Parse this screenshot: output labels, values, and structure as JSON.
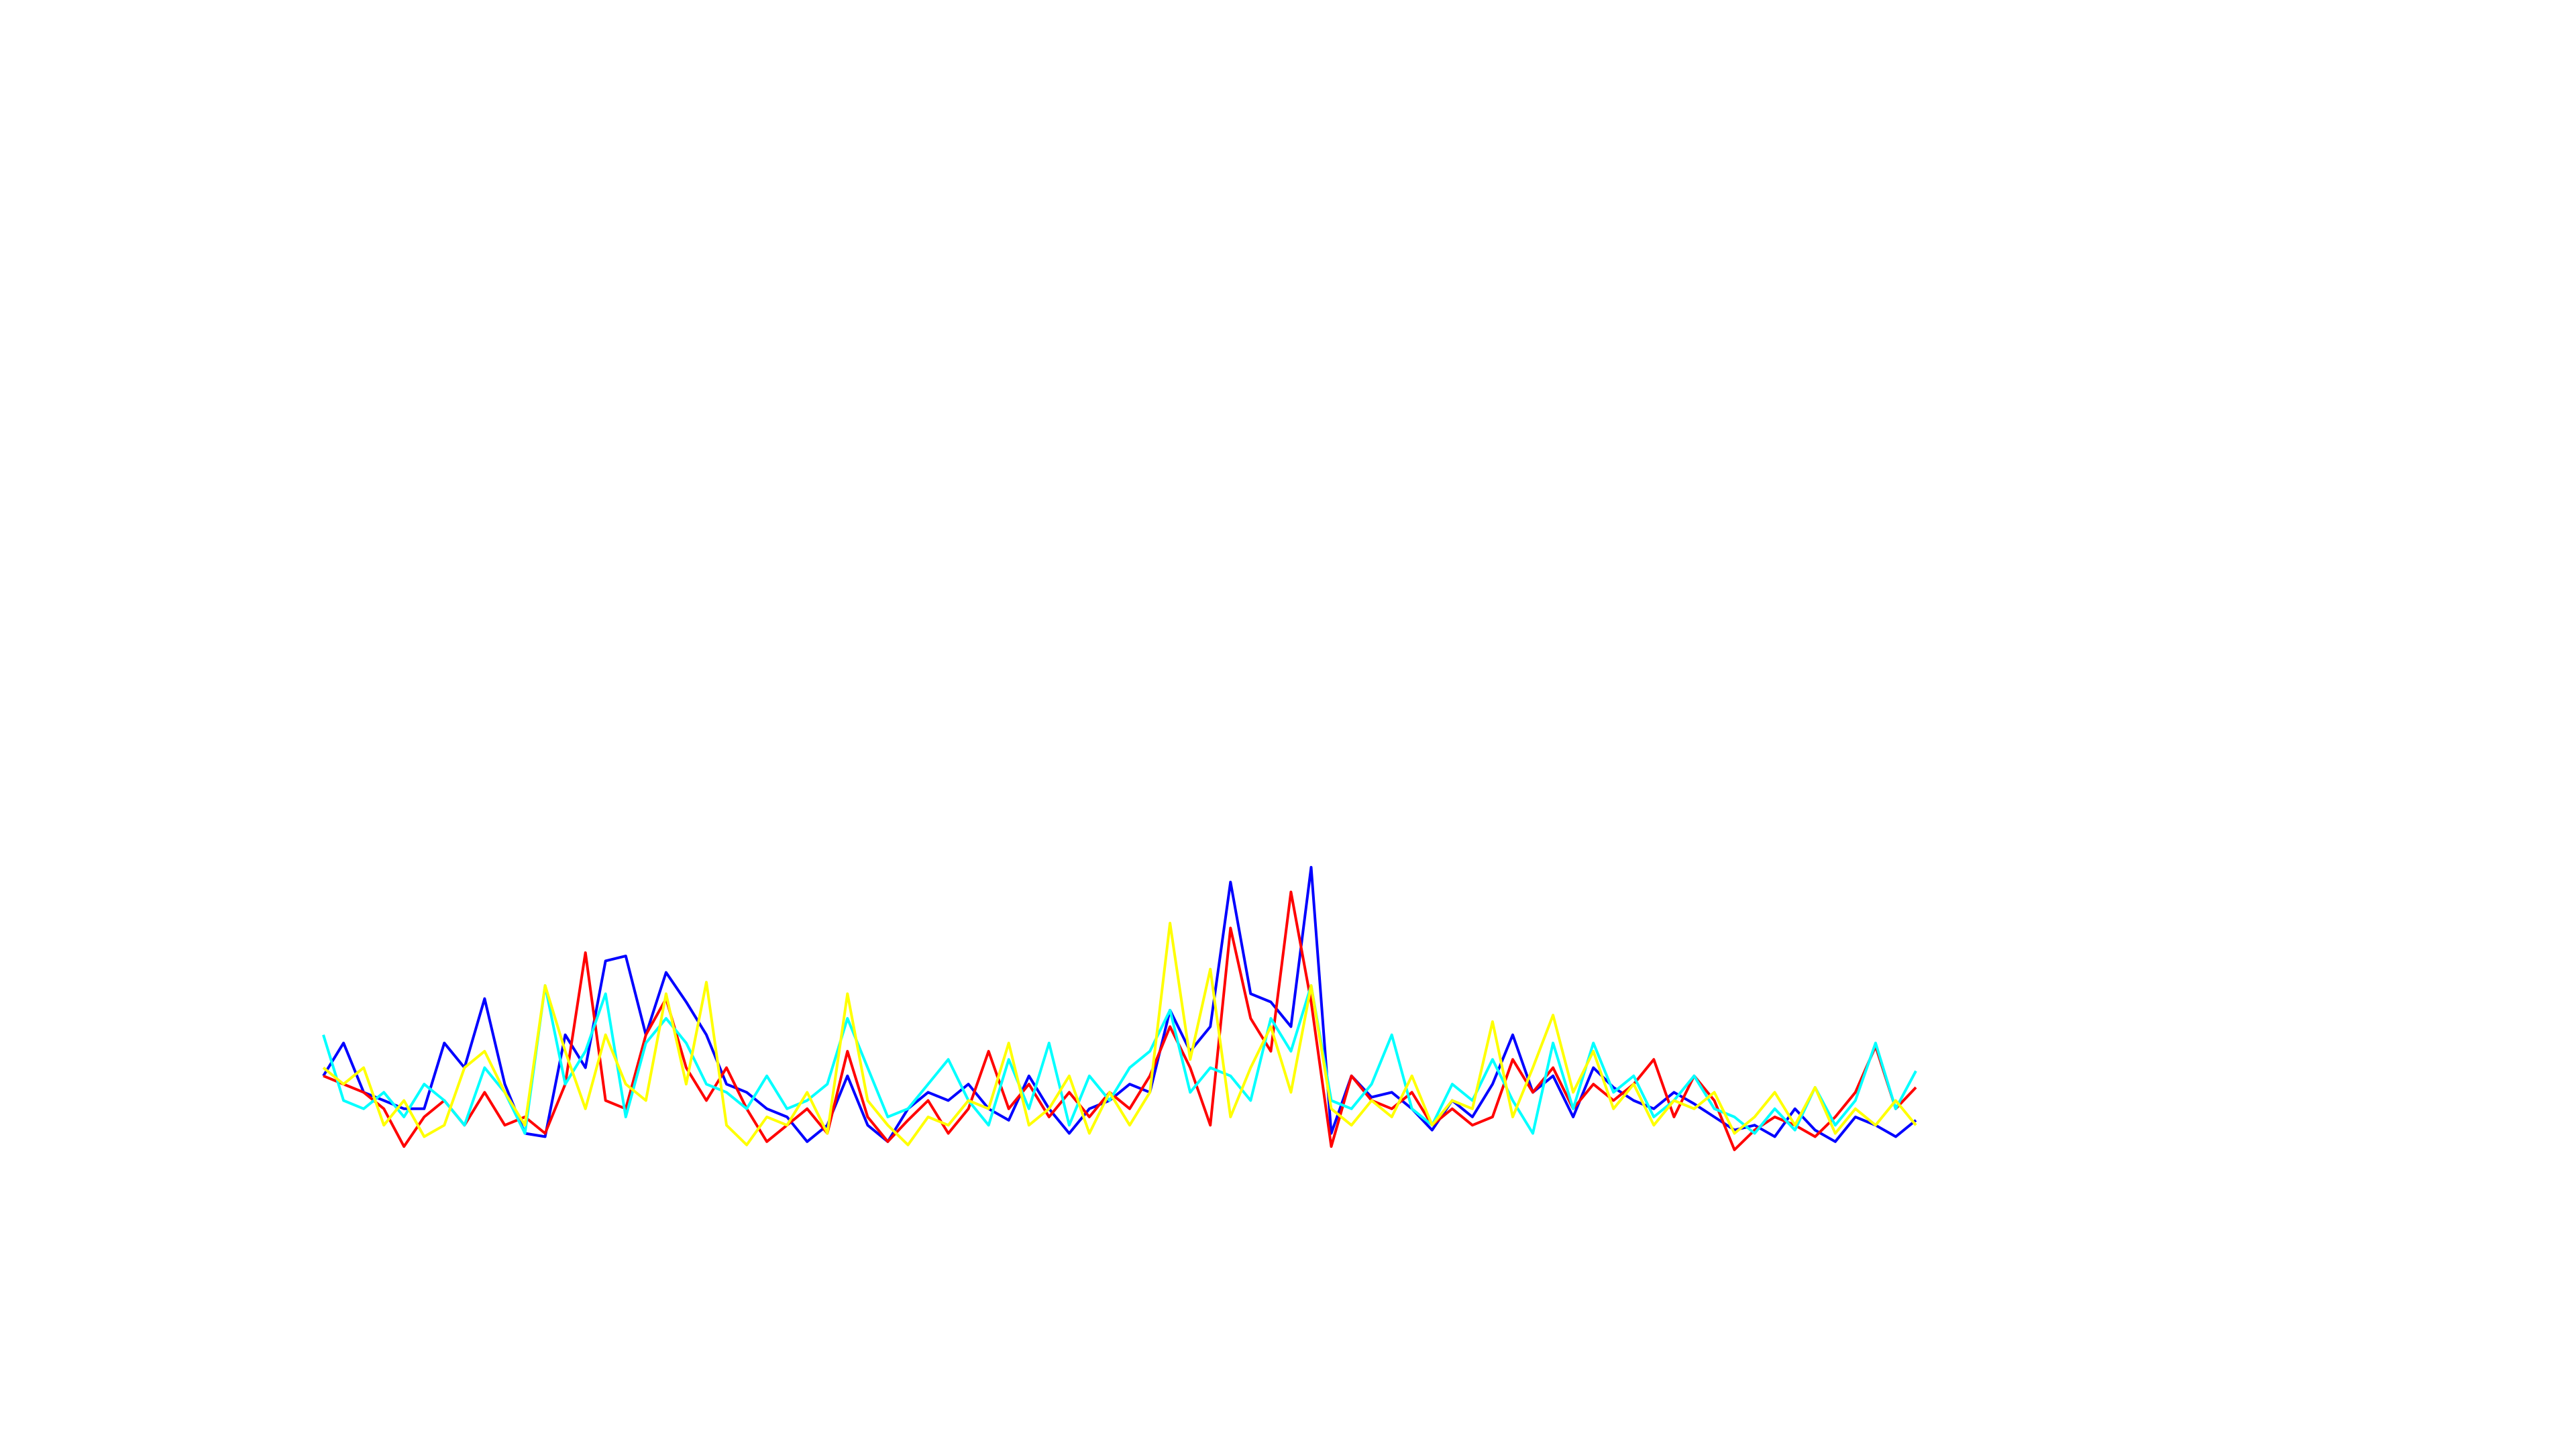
{
  "chart_data": {
    "type": "line",
    "ylim": [
      0,
      70
    ],
    "series": [
      {
        "color": "#0000ff",
        "values": [
          4.5,
          6.5,
          3.5,
          3,
          2.5,
          2.5,
          6.5,
          5,
          9.2,
          4,
          1,
          0.8,
          7,
          5,
          11.5,
          11.8,
          7,
          10.8,
          9,
          7,
          4,
          3.5,
          2.5,
          2,
          0.5,
          1.5,
          4.5,
          1.5,
          0.5,
          2.5,
          3.5,
          3,
          4,
          2.5,
          1.8,
          4.5,
          2.5,
          1,
          2.5,
          3,
          4,
          3.5,
          8.5,
          6,
          7.5,
          16.3,
          9.5,
          9,
          7.5,
          17.2,
          1,
          4.5,
          3.2,
          3.5,
          2.5,
          1.2,
          3,
          2,
          4,
          7,
          3.5,
          4.5,
          2,
          5,
          3.8,
          3,
          2.5,
          3.5,
          2.8,
          2,
          1.2,
          1.5,
          0.8,
          2.5,
          1.2,
          0.5,
          2,
          1.5,
          0.8,
          1.8
        ]
      },
      {
        "color": "#ff0000",
        "values": [
          4.5,
          4,
          3.5,
          2.5,
          0.2,
          2,
          3,
          1.5,
          3.5,
          1.5,
          2,
          1,
          4,
          12,
          3,
          2.5,
          7,
          9.2,
          5,
          3,
          5,
          2.5,
          0.5,
          1.5,
          2.5,
          1,
          6,
          2,
          0.5,
          1.8,
          3,
          1,
          2.5,
          6,
          2.5,
          4,
          2,
          3.5,
          2,
          3.5,
          2.5,
          4.5,
          7.5,
          5,
          1.5,
          13.5,
          8,
          6,
          15.7,
          9,
          0.2,
          4.5,
          3,
          2.5,
          3.5,
          1.5,
          2.5,
          1.5,
          2,
          5.5,
          3.5,
          5,
          2.5,
          4,
          3,
          4,
          5.5,
          2,
          4.5,
          3,
          0,
          1.2,
          2,
          1.5,
          0.8,
          2,
          3.5,
          6.3,
          2.5,
          3.8
        ]
      },
      {
        "color": "#00ffff",
        "values": [
          7,
          3,
          2.5,
          3.5,
          2,
          4,
          3,
          1.5,
          5,
          3.5,
          1,
          10,
          4,
          6,
          9.5,
          2,
          6.5,
          8,
          6.5,
          4,
          3.5,
          2.5,
          4.5,
          2.5,
          3,
          4,
          8,
          5,
          2,
          2.5,
          4,
          5.5,
          3,
          1.5,
          5.5,
          2.5,
          6.5,
          1.5,
          4.5,
          3,
          5,
          6,
          8.5,
          3.5,
          5,
          4.5,
          3,
          8,
          6,
          10,
          3,
          2.5,
          4,
          7,
          2.5,
          1.5,
          4,
          3,
          5.5,
          3,
          1,
          6.5,
          2.5,
          6.5,
          3.5,
          4.5,
          2,
          3,
          4.5,
          2.5,
          2,
          1,
          2.5,
          1.2,
          3.8,
          1.5,
          3,
          6.5,
          2.5,
          4.8
        ]
      },
      {
        "color": "#ffff00",
        "values": [
          5,
          4,
          5,
          1.5,
          3,
          0.8,
          1.5,
          5,
          6,
          3.5,
          1.5,
          10,
          6,
          2.5,
          7,
          4,
          3,
          9.5,
          4,
          10.2,
          1.5,
          0.3,
          2,
          1.5,
          3.5,
          1,
          9.5,
          3,
          1.5,
          0.3,
          2,
          1.5,
          3,
          2.5,
          6.5,
          1.5,
          2.5,
          4.5,
          1,
          3.5,
          1.5,
          3.5,
          13.8,
          5.5,
          11,
          2,
          5,
          7.5,
          3.5,
          10,
          2.5,
          1.5,
          3,
          2,
          4.5,
          1.5,
          3,
          2.5,
          7.8,
          2,
          5,
          8.2,
          3.5,
          6,
          2.5,
          4,
          1.5,
          3,
          2.5,
          3.5,
          1,
          2,
          3.5,
          1.5,
          3.8,
          1,
          2.5,
          1.5,
          3,
          1.5
        ]
      }
    ]
  }
}
